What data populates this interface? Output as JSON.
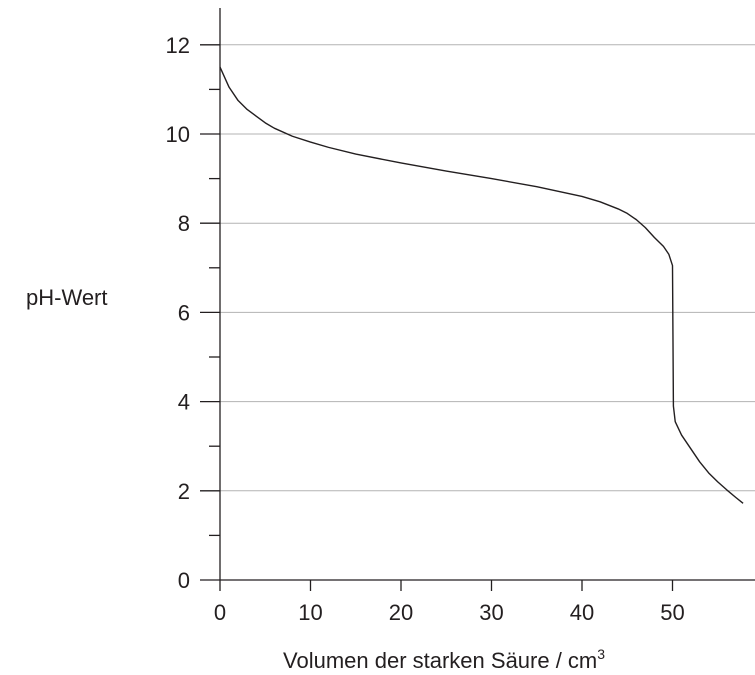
{
  "chart_data": {
    "type": "line",
    "title": "",
    "xlabel": "Volumen der starken Säure / cm",
    "xlabel_superscript": "3",
    "ylabel": "pH-Wert",
    "xlim": [
      0,
      58
    ],
    "ylim": [
      0,
      12.8
    ],
    "x_ticks": [
      0,
      10,
      20,
      30,
      40,
      50
    ],
    "x_tick_labels": [
      "0",
      "10",
      "20",
      "30",
      "40",
      "50"
    ],
    "y_ticks": [
      0,
      2,
      4,
      6,
      8,
      10,
      12
    ],
    "y_tick_labels": [
      "0",
      "2",
      "4",
      "6",
      "8",
      "10",
      "12"
    ],
    "y_minor_ticks": [
      1,
      3,
      5,
      7,
      9,
      11
    ],
    "grid": "horizontal",
    "grid_color": "#b3b3b3",
    "line_color": "#231f20",
    "series": [
      {
        "x": [
          0,
          1,
          2,
          3,
          4,
          5,
          6,
          8,
          10,
          12,
          15,
          20,
          25,
          30,
          35,
          40,
          42,
          44,
          45,
          46,
          47,
          48,
          49,
          49.6,
          50,
          50.05,
          50.1,
          50.3,
          51,
          52,
          53,
          54,
          55,
          56,
          57,
          57.8
        ],
        "y": [
          11.5,
          11.05,
          10.75,
          10.55,
          10.4,
          10.25,
          10.13,
          9.95,
          9.82,
          9.7,
          9.55,
          9.35,
          9.17,
          9.0,
          8.82,
          8.6,
          8.48,
          8.32,
          8.22,
          8.08,
          7.9,
          7.68,
          7.48,
          7.3,
          7.05,
          5.5,
          3.9,
          3.55,
          3.25,
          2.95,
          2.65,
          2.4,
          2.2,
          2.02,
          1.85,
          1.72
        ]
      }
    ]
  }
}
